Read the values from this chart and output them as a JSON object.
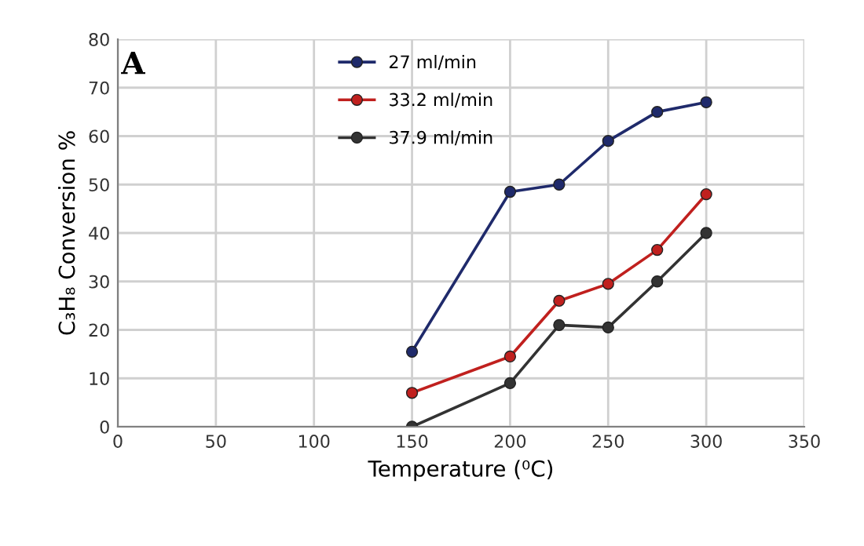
{
  "chart_data": {
    "type": "line",
    "xlabel": "Temperature (⁰C)",
    "ylabel": "C₃H₈ Conversion %",
    "annotations": [
      "A"
    ],
    "x": [
      150,
      200,
      225,
      250,
      275,
      300
    ],
    "series": [
      {
        "name": "27 ml/min",
        "color": "#1f2a6b",
        "values": [
          15.5,
          48.5,
          50,
          59,
          65,
          67
        ]
      },
      {
        "name": "33.2 ml/min",
        "color": "#c0201e",
        "values": [
          7,
          14.5,
          26,
          29.5,
          36.5,
          48
        ]
      },
      {
        "name": "37.9 ml/min",
        "color": "#333333",
        "values": [
          0,
          9,
          21,
          20.5,
          30,
          40
        ]
      }
    ],
    "xlim": [
      0,
      350
    ],
    "xticks": [
      0,
      50,
      100,
      150,
      200,
      250,
      300,
      350
    ],
    "ylim": [
      0,
      80
    ],
    "yticks": [
      0,
      10,
      20,
      30,
      40,
      50,
      60,
      70,
      80
    ],
    "grid": true,
    "legend": "top left",
    "marker": "circle",
    "line_style": "solid"
  }
}
